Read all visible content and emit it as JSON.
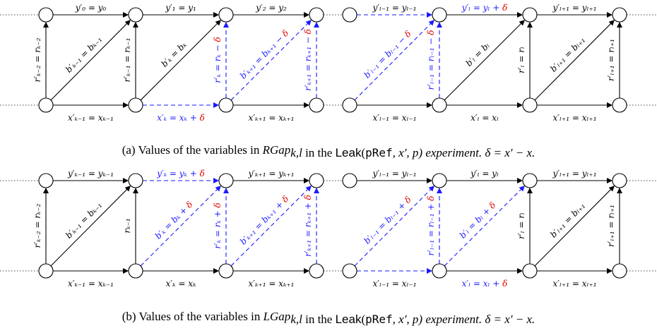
{
  "colors": {
    "black": "#000000",
    "blue": "#1a1aff",
    "red": "#e00000"
  },
  "panels": [
    {
      "caption": {
        "label": "(a) Values of the variables in",
        "set": "RGap",
        "sub": "k,l",
        "mid": "in the",
        "leak": "Leak",
        "args_open": "(",
        "pref": "pRef",
        "args": ", x′, p) experiment.",
        "delta": "δ = x′ − x."
      },
      "top_left": [
        {
          "text": "y′₀ = y₀"
        },
        {
          "text": "y′₁ = y₁"
        },
        {
          "text": "y′₂ = y₂"
        }
      ],
      "top_right": [
        {
          "text": "y′ₗ₋₁ = yₗ₋₁"
        },
        {
          "text": "y′ₗ = yₗ + ",
          "delta": "δ",
          "blue": true
        },
        {
          "text": "y′ₗ₊₁ = yₗ₊₁"
        }
      ],
      "bottom_left": [
        {
          "text": "x′ₖ₋₁ = xₖ₋₁"
        },
        {
          "text": "x′ₖ = xₖ + ",
          "delta": "δ",
          "blue": true
        },
        {
          "text": "x′ₖ₊₁ = xₖ₊₁"
        }
      ],
      "bottom_right": [
        {
          "text": "x′ₗ₋₁ = xₗ₋₁"
        },
        {
          "text": "x′ₗ = xₗ"
        },
        {
          "text": "x′ₗ₊₁ = xₗ₊₁"
        }
      ],
      "vert_left": [
        {
          "text": "r′ₖ₋₂ = rₖ₋₂"
        },
        {
          "text": "r′ₖ₋₁ = rₖ₋₁"
        },
        {
          "text": "r′ₖ = rₖ − ",
          "delta": "δ",
          "blue": true
        },
        {
          "text": "r′ₖ₊₁ = rₖ₊₁ − ",
          "delta": "δ",
          "blue": true
        }
      ],
      "vert_right": [
        {
          "text": "r′ₗ₋₁ = rₗ₋₁ − ",
          "delta": "δ",
          "blue": true
        },
        {
          "text": "r′ₗ = rₗ"
        },
        {
          "text": "r′ₗ₊₁ = rₗ₊₁"
        }
      ],
      "diag_left": [
        {
          "text": "b′ₖ₋₁ = bₖ₋₁"
        },
        {
          "text": "b′ₖ = bₖ"
        },
        {
          "text": "b′ₖ₊₁ = bₖ₊₁ − ",
          "delta": "δ",
          "blue": true
        }
      ],
      "diag_right": [
        {
          "text": "b′ₗ₋₁ = bₗ₋₁ − ",
          "delta": "δ",
          "blue": true
        },
        {
          "text": "b′ₗ = bₗ"
        },
        {
          "text": "b′ₗ₊₁ = bₗ₊₁"
        }
      ]
    },
    {
      "caption": {
        "label": "(b) Values of the variables in",
        "set": "LGap",
        "sub": "k,l",
        "mid": "in the",
        "leak": "Leak",
        "args_open": "(",
        "pref": "pRef",
        "args": ", x′, p) experiment.",
        "delta": "δ = x′ − x."
      },
      "top_left": [
        {
          "text": "y′ₖ₋₁ = yₖ₋₁"
        },
        {
          "text": "y′ₖ = yₖ + ",
          "delta": "δ",
          "blue": true
        },
        {
          "text": "y′ₖ₊₁ = yₖ₊₁"
        }
      ],
      "top_right": [
        {
          "text": "y′ₗ₋₁ = yₗ₋₁"
        },
        {
          "text": "y′ₗ = yₗ"
        },
        {
          "text": "y′ₗ₊₁ = yₗ₊₁"
        }
      ],
      "bottom_left": [
        {
          "text": "x′ₖ₋₁ = xₖ₋₁"
        },
        {
          "text": "x′ₖ = xₖ"
        },
        {
          "text": "x′ₖ₊₁ = xₖ₊₁"
        }
      ],
      "bottom_right": [
        {
          "text": "x′ₗ₋₁ = xₗ₋₁"
        },
        {
          "text": "x′ₗ = xₗ + ",
          "delta": "δ",
          "blue": true
        },
        {
          "text": "x′ₗ₊₁ = xₗ₊₁"
        }
      ],
      "vert_left": [
        {
          "text": "r′ₖ₋₂ = rₖ₋₂"
        },
        {
          "text": "rₖ₋₁"
        },
        {
          "text": "r′ₖ = rₖ + ",
          "delta": "δ",
          "blue": true
        },
        {
          "text": "r′ₖ₊₁ = rₖ₊₁ + ",
          "delta": "δ",
          "blue": true
        }
      ],
      "vert_right": [
        {
          "text": "r′ₗ₋₁ = rₗ₋₁ + ",
          "delta": "δ",
          "blue": true
        },
        {
          "text": "r′ₗ = rₗ"
        },
        {
          "text": "r′ₗ₊₁ = rₗ₊₁"
        }
      ],
      "diag_left": [
        {
          "text": "b′ₖ₋₁ = bₖ₋₁"
        },
        {
          "text": "b′ₖ = bₖ + ",
          "delta": "δ",
          "blue": true
        },
        {
          "text": "b′ₖ₊₁ = bₖ₊₁ + ",
          "delta": "δ",
          "blue": true
        }
      ],
      "diag_right": [
        {
          "text": "b′ₗ₋₁ = bₗ₋₁ + ",
          "delta": "δ",
          "blue": true
        },
        {
          "text": "b′ₗ = bₗ + ",
          "delta": "δ",
          "blue": true
        },
        {
          "text": "b′ₗ₊₁ = bₗ₊₁"
        }
      ]
    }
  ]
}
